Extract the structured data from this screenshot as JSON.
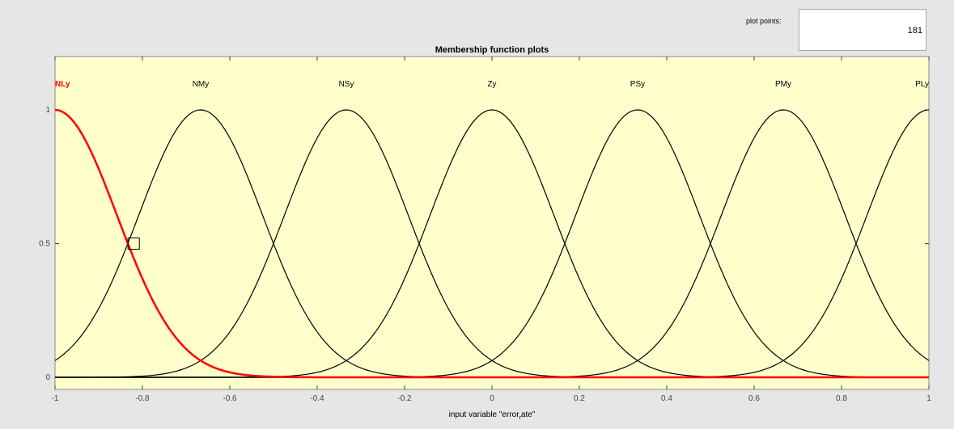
{
  "controls": {
    "plot_points_label": "plot points:",
    "plot_points_value": "181"
  },
  "chart_data": {
    "type": "line",
    "title": "Membership function plots",
    "xlabel_main": "input variable \"error",
    "xlabel_sub": "r",
    "xlabel_tail": "ate\"",
    "xlim": [
      -1,
      1
    ],
    "ylim": [
      0,
      1
    ],
    "xticks": [
      -1,
      -0.8,
      -0.6,
      -0.4,
      -0.2,
      0,
      0.2,
      0.4,
      0.6,
      0.8,
      1
    ],
    "xtick_labels": [
      "-1",
      "-0.8",
      "-0.6",
      "-0.4",
      "-0.2",
      "0",
      "0.2",
      "0.4",
      "0.6",
      "0.8",
      "1"
    ],
    "yticks": [
      0,
      0.5,
      1
    ],
    "ytick_labels": [
      "0",
      "0.5",
      "1"
    ],
    "grid": false,
    "background_color": "#ffffcc",
    "function_type": "gaussmf",
    "sigma": 0.1416,
    "selected_color": "#ff0000",
    "default_color": "#000000",
    "series": [
      {
        "name": "NLy",
        "center": -1.0,
        "selected": true
      },
      {
        "name": "NMy",
        "center": -0.6667,
        "selected": false
      },
      {
        "name": "NSy",
        "center": -0.3333,
        "selected": false
      },
      {
        "name": "Zy",
        "center": 0.0,
        "selected": false
      },
      {
        "name": "PSy",
        "center": 0.3333,
        "selected": false
      },
      {
        "name": "PMy",
        "center": 0.6667,
        "selected": false
      },
      {
        "name": "PLy",
        "center": 1.0,
        "selected": false
      }
    ],
    "marker": {
      "x": -0.82,
      "y": 0.5
    }
  }
}
